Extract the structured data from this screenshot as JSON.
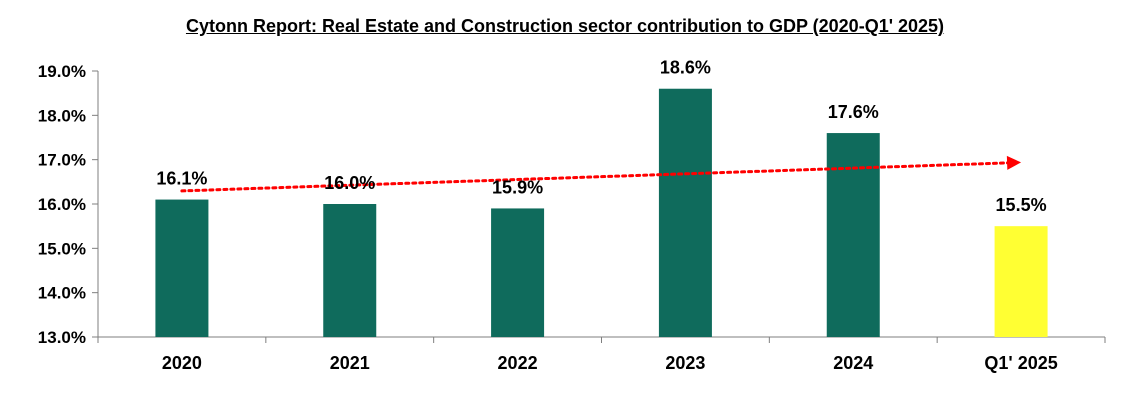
{
  "chart_data": {
    "type": "bar",
    "title": "Cytonn Report: Real Estate and Construction sector contribution to GDP (2020-Q1' 2025)",
    "xlabel": "",
    "ylabel": "",
    "categories": [
      "2020",
      "2021",
      "2022",
      "2023",
      "2024",
      "Q1' 2025"
    ],
    "values": [
      16.1,
      16.0,
      15.9,
      18.6,
      17.6,
      15.5
    ],
    "data_labels": [
      "16.1%",
      "16.0%",
      "15.9%",
      "18.6%",
      "17.6%",
      "15.5%"
    ],
    "ylim": [
      13.0,
      19.0
    ],
    "yticks": [
      13.0,
      14.0,
      15.0,
      16.0,
      17.0,
      18.0,
      19.0
    ],
    "ytick_labels": [
      "13.0%",
      "14.0%",
      "15.0%",
      "16.0%",
      "17.0%",
      "18.0%",
      "19.0%"
    ],
    "grid": false,
    "legend": "none",
    "trendline": {
      "style": "dotted",
      "direction": "upward",
      "color": "#ff0000"
    },
    "colors": {
      "bar": "#0f6b5c",
      "highlight_bar": "#ffff33",
      "highlight_index": 5,
      "axis": "#7f7f7f",
      "text": "#000000"
    }
  }
}
